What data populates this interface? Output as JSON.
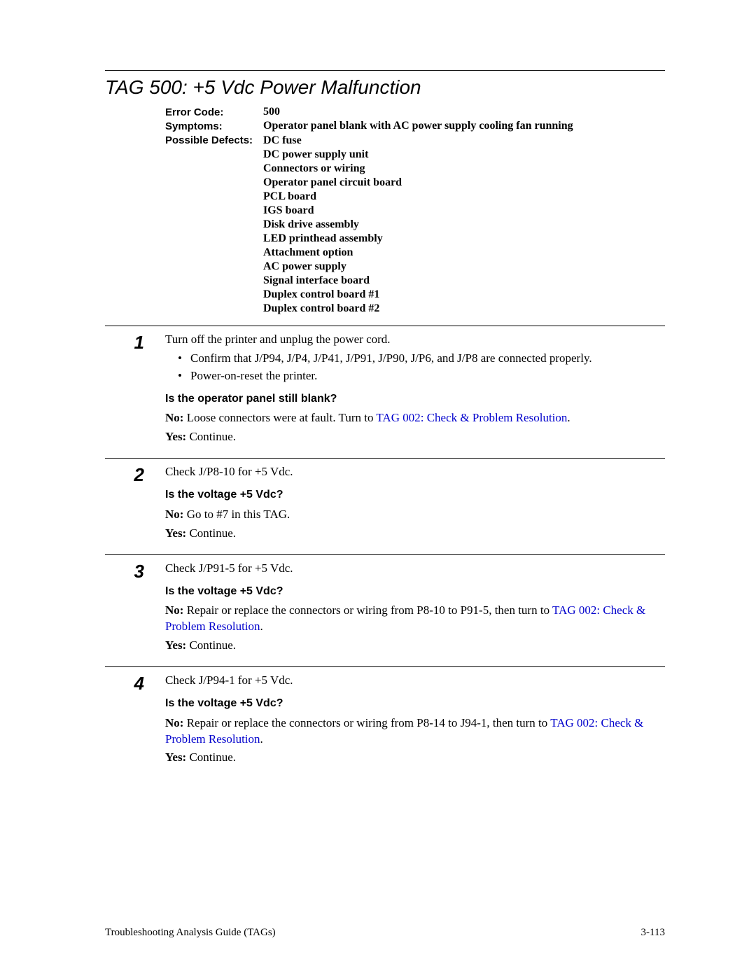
{
  "title": "TAG 500: +5 Vdc Power Malfunction",
  "info": {
    "error_code_label": "Error Code:",
    "error_code_value": "500",
    "symptoms_label": "Symptoms:",
    "symptoms_value": "Operator panel blank with AC power supply cooling fan running",
    "defects_label": "Possible Defects:",
    "defects": [
      "DC fuse",
      "DC power supply unit",
      "Connectors or wiring",
      "Operator panel circuit board",
      "PCL board",
      "IGS board",
      "Disk drive assembly",
      "LED printhead assembly",
      "Attachment option",
      "AC power supply",
      "Signal interface board",
      "Duplex control board #1",
      "Duplex control board #2"
    ]
  },
  "steps": {
    "s1": {
      "num": "1",
      "lead": "Turn off the printer and unplug the power cord.",
      "bullets": [
        "Confirm that J/P94, J/P4, J/P41, J/P91, J/P90, J/P6, and J/P8 are connected properly.",
        "Power-on-reset the printer."
      ],
      "question": "Is the operator panel still blank?",
      "no_label": "No:",
      "no_text_a": "  Loose connectors were at fault. Turn to ",
      "no_link": "TAG 002: Check & Problem Resolution",
      "no_text_b": ".",
      "yes_label": "Yes:",
      "yes_text": " Continue."
    },
    "s2": {
      "num": "2",
      "lead": "Check J/P8-10 for +5 Vdc.",
      "question": "Is the voltage +5 Vdc?",
      "no_label": "No:",
      "no_text": "  Go to #7 in this TAG.",
      "yes_label": "Yes:",
      "yes_text": " Continue."
    },
    "s3": {
      "num": "3",
      "lead": "Check J/P91-5 for +5 Vdc.",
      "question": "Is the voltage +5 Vdc?",
      "no_label": "No:",
      "no_text_a": "  Repair or replace the connectors or wiring from P8-10 to P91-5, then turn to ",
      "no_link": "TAG 002: Check & Problem Resolution",
      "no_text_b": ".",
      "yes_label": "Yes:",
      "yes_text": " Continue."
    },
    "s4": {
      "num": "4",
      "lead": "Check J/P94-1 for +5 Vdc.",
      "question": "Is the voltage +5 Vdc?",
      "no_label": "No:",
      "no_text_a": "  Repair or replace the connectors or wiring from P8-14 to J94-1, then turn to ",
      "no_link": "TAG 002: Check & Problem Resolution",
      "no_text_b": ".",
      "yes_label": "Yes:",
      "yes_text": " Continue."
    }
  },
  "footer": {
    "left": "Troubleshooting Analysis Guide (TAGs)",
    "right": "3-113"
  }
}
